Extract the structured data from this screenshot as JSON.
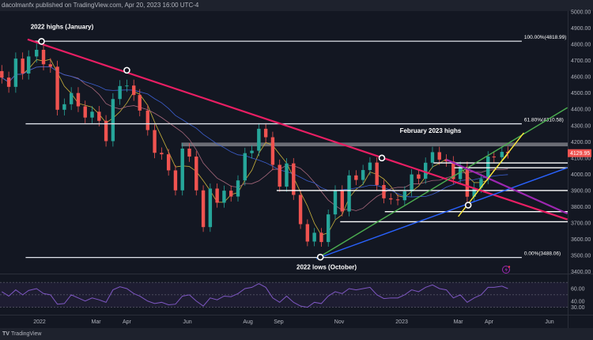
{
  "header": {
    "attribution": "dacolmanfx published on TradingView.com, Apr 20, 2023 16:00 UTC-4"
  },
  "footer": {
    "logo": "TV",
    "brand": "TradingView"
  },
  "colors": {
    "bg": "#131722",
    "up": "#26a69a",
    "down": "#ef5350",
    "rsi": "#7e57c2",
    "ma_fast": "#c8b13c",
    "ma_mid": "#a7687c",
    "ma_slow": "#3c5fcf"
  },
  "chart_data": {
    "type": "candlestick",
    "symbol_last_price": "4129.95",
    "price_axis": {
      "ylim": [
        3400,
        5000
      ],
      "ticks": [
        "5000.00",
        "4900.00",
        "4800.00",
        "4700.00",
        "4600.00",
        "4500.00",
        "4400.00",
        "4300.00",
        "4200.00",
        "4100.00",
        "4000.00",
        "3900.00",
        "3800.00",
        "3700.00",
        "3600.00",
        "3500.00",
        "3400.00"
      ]
    },
    "time_axis": {
      "ticks": [
        {
          "label": "2022",
          "date": "2022-01-03"
        },
        {
          "label": "Mar",
          "date": "2022-03-01"
        },
        {
          "label": "Apr",
          "date": "2022-04-01"
        },
        {
          "label": "Jun",
          "date": "2022-06-01"
        },
        {
          "label": "Aug",
          "date": "2022-08-01"
        },
        {
          "label": "Sep",
          "date": "2022-09-01"
        },
        {
          "label": "Nov",
          "date": "2022-11-01"
        },
        {
          "label": "2023",
          "date": "2023-01-03"
        },
        {
          "label": "Mar",
          "date": "2023-03-01"
        },
        {
          "label": "Apr",
          "date": "2023-04-01"
        },
        {
          "label": "Jun",
          "date": "2023-06-01"
        }
      ]
    },
    "dates": [
      "2021-11-26",
      "2021-12-03",
      "2021-12-10",
      "2021-12-17",
      "2021-12-23",
      "2021-12-31",
      "2022-01-07",
      "2022-01-14",
      "2022-01-21",
      "2022-01-28",
      "2022-02-04",
      "2022-02-11",
      "2022-02-18",
      "2022-02-25",
      "2022-03-04",
      "2022-03-11",
      "2022-03-18",
      "2022-03-25",
      "2022-04-01",
      "2022-04-08",
      "2022-04-14",
      "2022-04-22",
      "2022-04-29",
      "2022-05-06",
      "2022-05-13",
      "2022-05-20",
      "2022-05-27",
      "2022-06-03",
      "2022-06-10",
      "2022-06-17",
      "2022-06-24",
      "2022-07-01",
      "2022-07-08",
      "2022-07-15",
      "2022-07-22",
      "2022-07-29",
      "2022-08-05",
      "2022-08-12",
      "2022-08-19",
      "2022-08-26",
      "2022-09-02",
      "2022-09-09",
      "2022-09-16",
      "2022-09-23",
      "2022-09-30",
      "2022-10-07",
      "2022-10-14",
      "2022-10-21",
      "2022-10-28",
      "2022-11-04",
      "2022-11-11",
      "2022-11-18",
      "2022-11-25",
      "2022-12-02",
      "2022-12-09",
      "2022-12-16",
      "2022-12-23",
      "2022-12-30",
      "2023-01-06",
      "2023-01-13",
      "2023-01-20",
      "2023-01-27",
      "2023-02-03",
      "2023-02-10",
      "2023-02-17",
      "2023-02-24",
      "2023-03-03",
      "2023-03-10",
      "2023-03-17",
      "2023-03-24",
      "2023-03-31",
      "2023-04-06",
      "2023-04-14",
      "2023-04-20"
    ],
    "close": [
      4595,
      4538,
      4712,
      4620,
      4725,
      4766,
      4677,
      4662,
      4397,
      4431,
      4500,
      4418,
      4349,
      4385,
      4329,
      4204,
      4463,
      4543,
      4546,
      4488,
      4392,
      4272,
      4132,
      4123,
      4024,
      3901,
      4158,
      4109,
      3901,
      3675,
      3912,
      3825,
      3899,
      3863,
      3962,
      4130,
      4145,
      4280,
      4228,
      4058,
      3924,
      4067,
      3873,
      3693,
      3586,
      3640,
      3583,
      3753,
      3901,
      3771,
      3993,
      3965,
      4026,
      4072,
      3934,
      3852,
      3845,
      3840,
      3895,
      3999,
      3973,
      4071,
      4136,
      4090,
      4079,
      3970,
      4046,
      3862,
      3917,
      3971,
      4109,
      4105,
      4138,
      4130
    ],
    "rsi": {
      "levels": [
        "60.00",
        "40.00",
        "30.00"
      ],
      "ylim": [
        20,
        80
      ],
      "values": [
        55,
        48,
        58,
        50,
        57,
        60,
        52,
        50,
        35,
        36,
        50,
        45,
        40,
        45,
        42,
        38,
        58,
        63,
        60,
        52,
        48,
        40,
        36,
        38,
        34,
        35,
        48,
        50,
        40,
        32,
        45,
        42,
        48,
        47,
        52,
        60,
        62,
        68,
        62,
        45,
        38,
        48,
        38,
        32,
        30,
        38,
        36,
        48,
        55,
        52,
        60,
        58,
        60,
        62,
        50,
        44,
        45,
        45,
        50,
        58,
        55,
        62,
        66,
        60,
        58,
        45,
        50,
        38,
        45,
        50,
        62,
        62,
        64,
        60
      ]
    },
    "fib_levels": [
      {
        "label": "100.00%(4818.99)",
        "price": 4818.99,
        "from": "2021-12-26",
        "to": "2023-05-04"
      },
      {
        "label": "61.80%(4310.58)",
        "price": 4310.58,
        "from": "2021-12-20",
        "to": "2023-05-04"
      },
      {
        "label": "0.00%(3488.06)",
        "price": 3488.06,
        "from": "2021-12-20",
        "to": "2023-05-04"
      }
    ],
    "horizontal_lines": [
      {
        "price": 4070,
        "from": "2023-02-04"
      },
      {
        "price": 4040,
        "from": "2023-02-25"
      },
      {
        "price": 3900,
        "from": "2022-08-30"
      },
      {
        "price": 3770,
        "from": "2022-12-17"
      },
      {
        "price": 3708,
        "from": "2022-11-02"
      }
    ],
    "resistance_band": {
      "from": "2022-05-26",
      "low": 4172,
      "high": 4195
    },
    "trendlines": [
      {
        "name": "red-trendline",
        "color": "#e91e63",
        "p1": [
          "2021-12-22",
          4830
        ],
        "p2": [
          "2023-06-19",
          3722
        ]
      },
      {
        "name": "green-trendline",
        "color": "#4caf50",
        "p1": [
          "2022-10-09",
          3480
        ],
        "p2": [
          "2023-06-19",
          4410
        ]
      },
      {
        "name": "blue-trendline",
        "color": "#2962ff",
        "p1": [
          "2022-10-09",
          3480
        ],
        "p2": [
          "2023-06-19",
          4040
        ]
      },
      {
        "name": "purple-trendline",
        "color": "#9c27b0",
        "p1": [
          "2023-02-17",
          4090
        ],
        "p2": [
          "2023-06-19",
          3758
        ]
      },
      {
        "name": "yellow-trendline",
        "color": "#ffeb3b",
        "p1": [
          "2023-03-01",
          3740
        ],
        "p2": [
          "2023-05-06",
          4255
        ]
      }
    ],
    "markers": [
      [
        "2022-01-05",
        4818
      ],
      [
        "2022-04-01",
        4640
      ],
      [
        "2022-12-14",
        4100
      ],
      [
        "2023-03-11",
        3810
      ],
      [
        "2022-10-13",
        3490
      ]
    ],
    "annotations": [
      {
        "text": "2022 highs (January)",
        "date": "2021-12-25",
        "price": 4895
      },
      {
        "text": "February 2023 highs",
        "date": "2023-01-01",
        "price": 4255
      },
      {
        "text": "2022 lows (October)",
        "date": "2022-09-19",
        "price": 3415
      }
    ]
  }
}
